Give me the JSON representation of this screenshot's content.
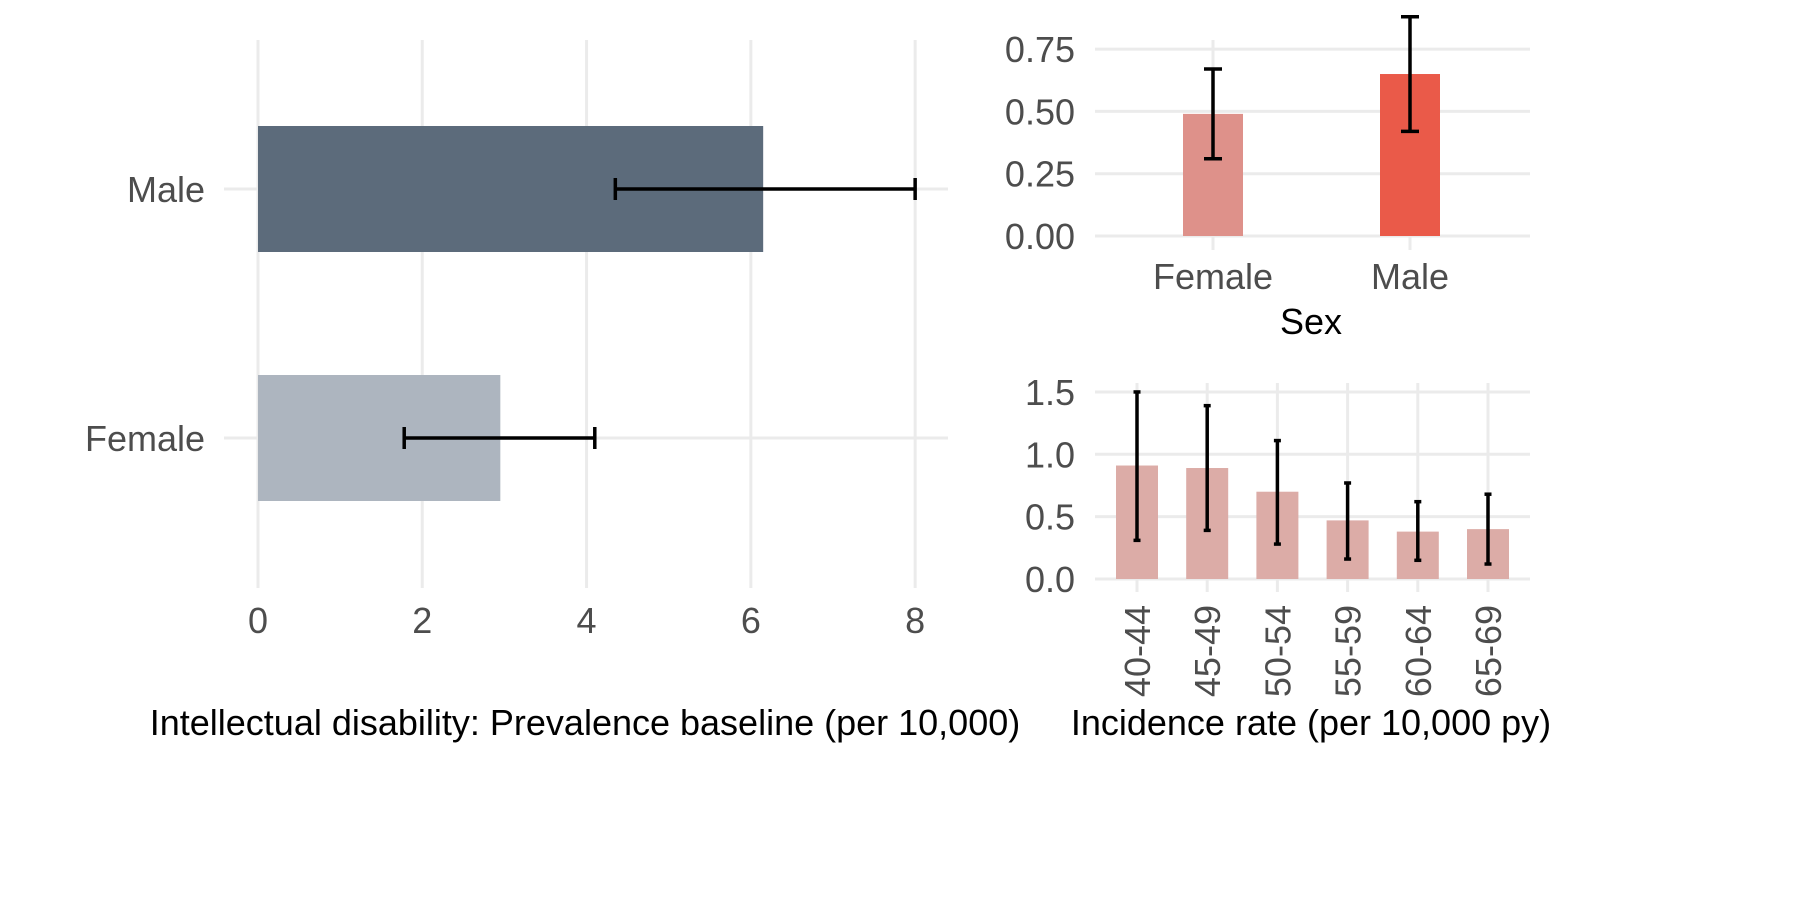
{
  "chart_data": [
    {
      "id": "prevalence",
      "type": "bar",
      "orientation": "horizontal",
      "title": "",
      "xlabel": "Intellectual disability: Prevalence baseline (per 10,000)",
      "ylabel": "",
      "categories": [
        "Female",
        "Male"
      ],
      "values": [
        2.95,
        6.15
      ],
      "ci_low": [
        1.78,
        4.35
      ],
      "ci_high": [
        4.1,
        8.0
      ],
      "colors": [
        "#adb5bf",
        "#5c6b7b"
      ],
      "xlim": [
        0,
        8.4
      ],
      "xticks": [
        0,
        2,
        4,
        6,
        8
      ],
      "grid": true
    },
    {
      "id": "by_sex",
      "type": "bar",
      "title": "",
      "xlabel": "Sex",
      "ylabel": "",
      "categories": [
        "Female",
        "Male"
      ],
      "values": [
        0.49,
        0.65
      ],
      "ci_low": [
        0.31,
        0.42
      ],
      "ci_high": [
        0.67,
        0.88
      ],
      "colors": [
        "#de918a",
        "#ea5a49"
      ],
      "ylim": [
        0,
        0.9
      ],
      "yticks": [
        "0.00",
        "0.25",
        "0.50",
        "0.75"
      ],
      "grid": true
    },
    {
      "id": "by_age",
      "type": "bar",
      "title": "",
      "xlabel": "Incidence rate (per 10,000 py)",
      "ylabel": "",
      "categories": [
        "40-44",
        "45-49",
        "50-54",
        "55-59",
        "60-64",
        "65-69"
      ],
      "values": [
        0.91,
        0.89,
        0.7,
        0.47,
        0.38,
        0.4
      ],
      "ci_low": [
        0.31,
        0.39,
        0.28,
        0.16,
        0.15,
        0.12
      ],
      "ci_high": [
        1.5,
        1.39,
        1.11,
        0.77,
        0.62,
        0.68
      ],
      "colors": [
        "#dcaca7"
      ],
      "ylim": [
        0,
        1.55
      ],
      "yticks": [
        "0.0",
        "0.5",
        "1.0",
        "1.5"
      ],
      "grid": true
    }
  ]
}
